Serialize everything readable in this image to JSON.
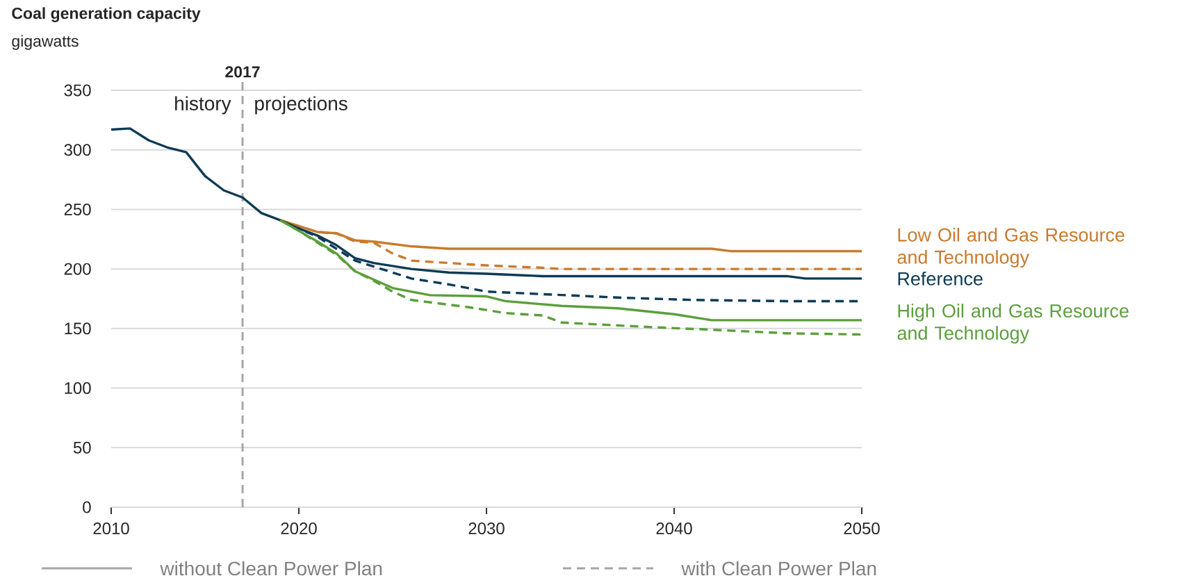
{
  "chart_data": {
    "type": "line",
    "title": "Coal generation capacity",
    "ylabel": "gigawatts",
    "xlim": [
      2010,
      2050
    ],
    "xticks": [
      2010,
      2020,
      2030,
      2040,
      2050
    ],
    "ylim": [
      0,
      350
    ],
    "yticks": [
      0,
      50,
      100,
      150,
      200,
      250,
      300,
      350
    ],
    "grid": "y",
    "marker": "none",
    "ref_lines": [
      {
        "axis": "x",
        "value": 2017,
        "label": "2017",
        "color": "#a6a6a6",
        "line_style": "dashed"
      }
    ],
    "annotations": [
      "history",
      "projections",
      "without Clean Power Plan",
      "with Clean Power Plan"
    ],
    "series": [
      {
        "name": "Low Oil and Gas Resource and Technology",
        "color": "#c97a2c",
        "line_style": "solid",
        "x": [
          2019,
          2020,
          2021,
          2022,
          2023,
          2024,
          2026,
          2028,
          2042,
          2043,
          2050
        ],
        "values": [
          241,
          236,
          231,
          230,
          224,
          223,
          219,
          217,
          217,
          215,
          215
        ]
      },
      {
        "name": "Reference",
        "color": "#0d3b55",
        "line_style": "solid",
        "x": [
          2010,
          2011,
          2012,
          2013,
          2014,
          2015,
          2016,
          2017,
          2018,
          2019,
          2020,
          2021,
          2022,
          2023,
          2024,
          2026,
          2028,
          2030,
          2033,
          2046,
          2047,
          2050
        ],
        "values": [
          317,
          318,
          308,
          302,
          298,
          278,
          266,
          260,
          247,
          241,
          234,
          228,
          220,
          209,
          205,
          200,
          197,
          196,
          194,
          194,
          192,
          192
        ]
      },
      {
        "name": "High Oil and Gas Resource and Technology",
        "color": "#5b9f3c",
        "line_style": "solid",
        "x": [
          2019,
          2020,
          2021,
          2022,
          2023,
          2025,
          2026,
          2027,
          2030,
          2031,
          2034,
          2037,
          2040,
          2042,
          2050
        ],
        "values": [
          241,
          232,
          223,
          213,
          198,
          184,
          181,
          178,
          177,
          173,
          169,
          167,
          162,
          157,
          157
        ]
      },
      {
        "color": "#c97a2c",
        "line_style": "dashed",
        "x": [
          2019,
          2020,
          2021,
          2022,
          2023,
          2024,
          2025,
          2026,
          2028,
          2030,
          2033,
          2034,
          2050
        ],
        "values": [
          241,
          236,
          231,
          230,
          223,
          222,
          213,
          207,
          205,
          203,
          201,
          200,
          200
        ]
      },
      {
        "color": "#0d3b55",
        "line_style": "dashed",
        "x": [
          2019,
          2020,
          2021,
          2022,
          2023,
          2024,
          2025,
          2026,
          2028,
          2030,
          2037,
          2041,
          2046,
          2050
        ],
        "values": [
          241,
          234,
          227,
          217,
          207,
          202,
          197,
          192,
          187,
          181,
          176,
          174,
          173,
          173
        ]
      },
      {
        "color": "#5b9f3c",
        "line_style": "dashed",
        "x": [
          2019,
          2020,
          2021,
          2022,
          2023,
          2024,
          2025,
          2026,
          2027,
          2029,
          2031,
          2033,
          2034,
          2039,
          2042,
          2046,
          2050
        ],
        "values": [
          241,
          232,
          222,
          212,
          198,
          190,
          181,
          174,
          172,
          168,
          163,
          161,
          155,
          151,
          149,
          146,
          145
        ]
      }
    ]
  }
}
